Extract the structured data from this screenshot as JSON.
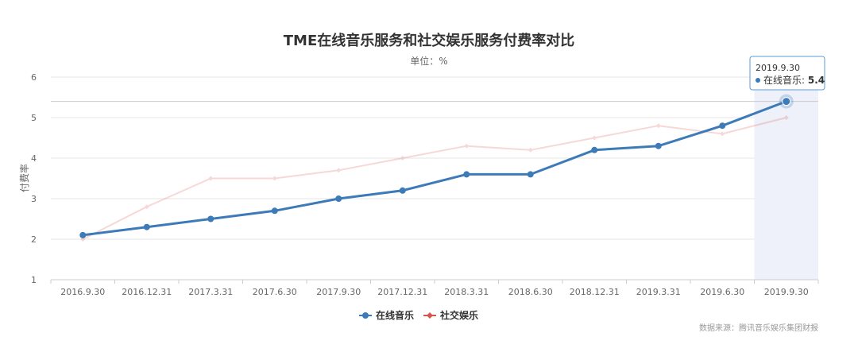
{
  "chart_data": {
    "type": "line",
    "title": "TME在线音乐服务和社交娱乐服务付费率对比",
    "subtitle": "单位：%",
    "ylabel": "付费率",
    "xlabel": "",
    "ylim": [
      1,
      6
    ],
    "y_ticks": [
      1,
      2,
      3,
      4,
      5,
      6
    ],
    "grid": true,
    "legend_position": "bottom",
    "categories": [
      "2016.9.30",
      "2016.12.31",
      "2017.3.31",
      "2017.6.30",
      "2017.9.30",
      "2017.12.31",
      "2018.3.31",
      "2018.6.30",
      "2018.12.31",
      "2019.3.31",
      "2019.6.30",
      "2019.9.30"
    ],
    "series": [
      {
        "name": "在线音乐",
        "color": "#3d7ab8",
        "values": [
          2.1,
          2.3,
          2.5,
          2.7,
          3.0,
          3.2,
          3.6,
          3.6,
          4.2,
          4.3,
          4.8,
          5.4
        ]
      },
      {
        "name": "社交娱乐",
        "color": "#d9534f",
        "values": [
          2.0,
          2.8,
          3.5,
          3.5,
          3.7,
          4.0,
          4.3,
          4.2,
          4.5,
          4.8,
          4.6,
          5.0
        ]
      }
    ],
    "tooltip": {
      "category": "2019.9.30",
      "series_name": "在线音乐",
      "separator": ": ",
      "value": "5.4"
    },
    "source": "数据来源：腾讯音乐娱乐集团财报"
  }
}
